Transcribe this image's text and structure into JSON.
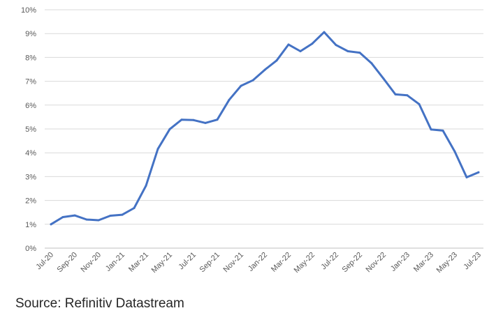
{
  "chart_data": {
    "type": "line",
    "title": "",
    "xlabel": "",
    "ylabel": "",
    "ylim": [
      0,
      10
    ],
    "yticks": [
      "0%",
      "1%",
      "2%",
      "3%",
      "4%",
      "5%",
      "6%",
      "7%",
      "8%",
      "9%",
      "10%"
    ],
    "grid": "horizontal",
    "legend": "none",
    "line_color": "#4472c4",
    "x": [
      "Jul-20",
      "Aug-20",
      "Sep-20",
      "Oct-20",
      "Nov-20",
      "Dec-20",
      "Jan-21",
      "Feb-21",
      "Mar-21",
      "Apr-21",
      "May-21",
      "Jun-21",
      "Jul-21",
      "Aug-21",
      "Sep-21",
      "Oct-21",
      "Nov-21",
      "Dec-21",
      "Jan-22",
      "Feb-22",
      "Mar-22",
      "Apr-22",
      "May-22",
      "Jun-22",
      "Jul-22",
      "Aug-22",
      "Sep-22",
      "Oct-22",
      "Nov-22",
      "Dec-22",
      "Jan-23",
      "Feb-23",
      "Mar-23",
      "Apr-23",
      "May-23",
      "Jun-23",
      "Jul-23"
    ],
    "xtick_labels": [
      "Jul-20",
      "Sep-20",
      "Nov-20",
      "Jan-21",
      "Mar-21",
      "May-21",
      "Jul-21",
      "Sep-21",
      "Nov-21",
      "Jan-22",
      "Mar-22",
      "May-22",
      "Jul-22",
      "Sep-22",
      "Nov-22",
      "Jan-23",
      "Mar-23",
      "May-23",
      "Jul-23"
    ],
    "series": [
      {
        "values": [
          1.0,
          1.3,
          1.37,
          1.2,
          1.17,
          1.36,
          1.4,
          1.68,
          2.62,
          4.16,
          4.99,
          5.39,
          5.37,
          5.25,
          5.39,
          6.22,
          6.81,
          7.04,
          7.48,
          7.87,
          8.54,
          8.26,
          8.58,
          9.06,
          8.52,
          8.26,
          8.2,
          7.75,
          7.11,
          6.45,
          6.41,
          6.04,
          4.98,
          4.93,
          4.05,
          2.97,
          3.18
        ]
      }
    ]
  },
  "source": "Source: Refinitiv Datastream"
}
